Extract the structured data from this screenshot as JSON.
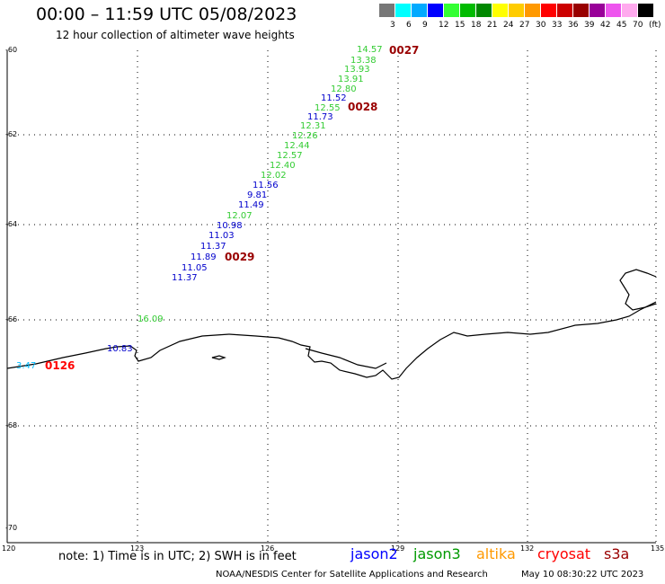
{
  "header": {
    "title": "00:00 – 11:59 UTC 05/08/2023",
    "subtitle": "12 hour collection of altimeter wave heights"
  },
  "legend": {
    "labels": [
      "3",
      "6",
      "9",
      "12",
      "15",
      "18",
      "21",
      "24",
      "27",
      "30",
      "33",
      "36",
      "39",
      "42",
      "45",
      "70",
      "(ft)"
    ],
    "colors": [
      "#777777",
      "#00ffff",
      "#00aaff",
      "#0000ff",
      "#33ff33",
      "#00bb00",
      "#008800",
      "#ffff00",
      "#ffcc00",
      "#ff9900",
      "#ff0000",
      "#cc0000",
      "#990000",
      "#990099",
      "#ee55ee",
      "#ffaaee",
      "#000000"
    ]
  },
  "axes": {
    "y_ticks": [
      "-60",
      "-62",
      "-64",
      "-66",
      "-68",
      "-70"
    ],
    "x_ticks": [
      "120",
      "123",
      "126",
      "129",
      "132",
      "135"
    ]
  },
  "observations": [
    {
      "value": "14.57",
      "color": "#33cc33"
    },
    {
      "value": "13.38",
      "color": "#33cc33"
    },
    {
      "value": "13.93",
      "color": "#33cc33"
    },
    {
      "value": "13.91",
      "color": "#33cc33"
    },
    {
      "value": "12.80",
      "color": "#33cc33"
    },
    {
      "value": "11.52",
      "color": "#0000cc"
    },
    {
      "value": "12.55",
      "color": "#33cc33"
    },
    {
      "value": "11.73",
      "color": "#0000cc"
    },
    {
      "value": "12.31",
      "color": "#33cc33"
    },
    {
      "value": "12.26",
      "color": "#33cc33"
    },
    {
      "value": "12.44",
      "color": "#33cc33"
    },
    {
      "value": "12.57",
      "color": "#33cc33"
    },
    {
      "value": "12.40",
      "color": "#33cc33"
    },
    {
      "value": "12.02",
      "color": "#33cc33"
    },
    {
      "value": "11.56",
      "color": "#0000cc"
    },
    {
      "value": "9.81",
      "color": "#0000cc"
    },
    {
      "value": "11.49",
      "color": "#0000cc"
    },
    {
      "value": "12.07",
      "color": "#33cc33"
    },
    {
      "value": "10.98",
      "color": "#0000cc"
    },
    {
      "value": "11.03",
      "color": "#0000cc"
    },
    {
      "value": "11.37",
      "color": "#0000cc"
    },
    {
      "value": "11.89",
      "color": "#0000cc"
    },
    {
      "value": "11.05",
      "color": "#0000cc"
    },
    {
      "value": "11.37",
      "color": "#0000cc"
    },
    {
      "value": "16.09",
      "color": "#33cc33"
    },
    {
      "value": "10.83",
      "color": "#0000cc"
    },
    {
      "value": "3.47",
      "color": "#00bbff"
    }
  ],
  "pass_labels": [
    {
      "text": "0027",
      "color": "#990000"
    },
    {
      "text": "0028",
      "color": "#990000"
    },
    {
      "text": "0029",
      "color": "#990000"
    },
    {
      "text": "0126",
      "color": "#ff0000"
    }
  ],
  "footer": {
    "note": "note:  1) Time is in UTC;  2) SWH is in feet",
    "satellites": [
      {
        "name": "jason2",
        "color": "#0000ff"
      },
      {
        "name": "jason3",
        "color": "#009900"
      },
      {
        "name": "altika",
        "color": "#ff9900"
      },
      {
        "name": "cryosat",
        "color": "#ff0000"
      },
      {
        "name": "s3a",
        "color": "#990000"
      }
    ],
    "credit": "NOAA/NESDIS Center for Satellite Applications and Research",
    "timestamp": "May 10 08:30:22 UTC 2023"
  }
}
